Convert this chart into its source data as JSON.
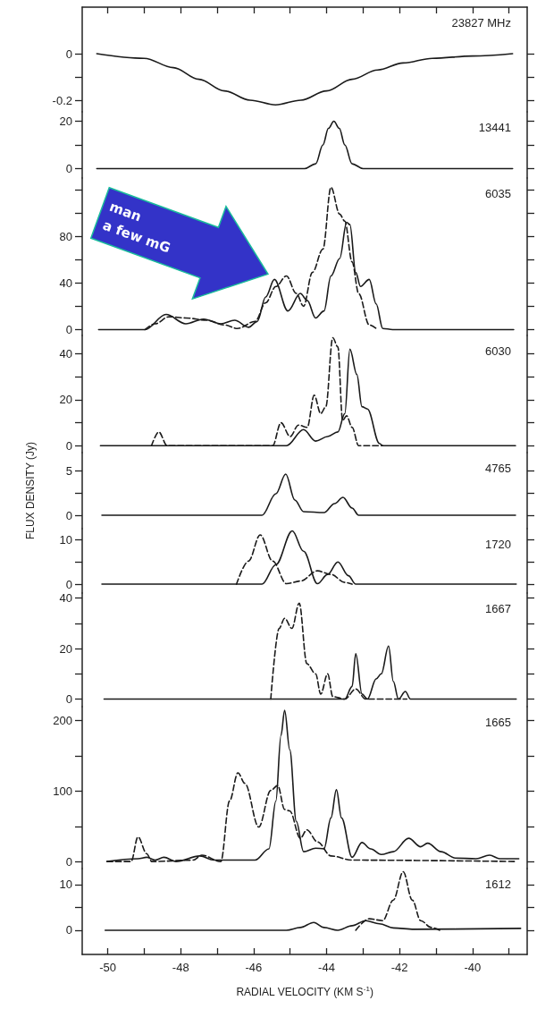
{
  "chart_data": [
    {
      "type": "line",
      "title": "23827 MHz",
      "xlim": [
        -50.7,
        -38.5
      ],
      "xticks": [
        -50,
        {
          "value": -49,
          "label": null
        },
        -48,
        {
          "value": -47,
          "label": null
        },
        -46,
        {
          "value": -45,
          "label": null
        },
        -44,
        {
          "value": -43,
          "label": null
        },
        -42,
        {
          "value": -41,
          "label": null
        },
        -40,
        {
          "value": -39,
          "label": null
        }
      ],
      "ylim": [
        -0.25,
        0.2
      ],
      "yticks": [
        0,
        {
          "value": -0.1,
          "label": null
        },
        -0.2
      ],
      "tick_labels": "y",
      "grid": false,
      "marker": "none",
      "series": [
        {
          "color": "#1a1a1a",
          "line_style": "solid",
          "x": [
            -50.3,
            -49,
            -48.2,
            -47.5,
            -46.8,
            -46.1,
            -45.4,
            -44.7,
            -44,
            -43.3,
            -42.6,
            -41.9,
            -41.1,
            -40,
            -38.9
          ],
          "values": [
            0,
            -0.02,
            -0.06,
            -0.11,
            -0.16,
            -0.2,
            -0.22,
            -0.2,
            -0.16,
            -0.11,
            -0.07,
            -0.04,
            -0.02,
            -0.01,
            0
          ]
        }
      ]
    },
    {
      "type": "line",
      "title": "13441",
      "xlim": [
        -50.7,
        -38.5
      ],
      "ylim": [
        -4,
        24
      ],
      "yticks": [
        0,
        {
          "value": 10,
          "label": null
        },
        20
      ],
      "tick_labels": "y",
      "grid": false,
      "marker": "none",
      "series": [
        {
          "color": "#1a1a1a",
          "line_style": "solid",
          "x": [
            -50.3,
            -44.6,
            -44.3,
            -44.1,
            -43.95,
            -43.8,
            -43.65,
            -43.5,
            -43.3,
            -43,
            -38.9
          ],
          "values": [
            0,
            0,
            2,
            10,
            17,
            20,
            17,
            10,
            2,
            0,
            0
          ]
        }
      ]
    },
    {
      "type": "line",
      "title": "6035",
      "xlim": [
        -50.7,
        -38.5
      ],
      "ylim": [
        -5,
        130
      ],
      "yticks": [
        0,
        {
          "value": 20,
          "label": null
        },
        40,
        {
          "value": 60,
          "label": null
        },
        80,
        {
          "value": 100,
          "label": null
        },
        {
          "value": 120,
          "label": null
        }
      ],
      "tick_labels": "y",
      "grid": false,
      "marker": "none",
      "annotations": [
        "man",
        "a few mG"
      ],
      "series": [
        {
          "color": "#1a1a1a",
          "line_style": "solid",
          "x": [
            -50.25,
            -48.98,
            -48.4,
            -47.86,
            -47.37,
            -46.9,
            -46.52,
            -46.14,
            -45.9,
            -45.67,
            -45.43,
            -45.06,
            -44.72,
            -44.53,
            -44.3,
            -44.07,
            -43.88,
            -43.64,
            -43.45,
            -43.36,
            -43.2,
            -43.07,
            -42.83,
            -42.64,
            -42.46,
            -42.19,
            -38.87
          ],
          "values": [
            0,
            0,
            13,
            5,
            9,
            5,
            8,
            2,
            7,
            28,
            43,
            16,
            31,
            25,
            10,
            16,
            46,
            61,
            92,
            90,
            49,
            37,
            43,
            22,
            1,
            0,
            0
          ]
        },
        {
          "color": "#1a1a1a",
          "line_style": "dashed",
          "x": [
            -48.98,
            -48.7,
            -48.32,
            -47.86,
            -47.28,
            -46.81,
            -46.44,
            -45.96,
            -45.67,
            -45.39,
            -45.1,
            -44.83,
            -44.63,
            -44.39,
            -44.1,
            -43.88,
            -43.64,
            -43.5,
            -43.3,
            -43.12,
            -42.83,
            -42.6
          ],
          "values": [
            0,
            5,
            11,
            10,
            8,
            4,
            1,
            7,
            23,
            37,
            46,
            31,
            20,
            49,
            69,
            122,
            99,
            93,
            58,
            31,
            4,
            0
          ]
        }
      ]
    },
    {
      "type": "line",
      "title": "6030",
      "xlim": [
        -50.7,
        -38.5
      ],
      "ylim": [
        -3,
        48
      ],
      "yticks": [
        0,
        {
          "value": 10,
          "label": null
        },
        20,
        {
          "value": 30,
          "label": null
        },
        40
      ],
      "tick_labels": "y",
      "grid": false,
      "marker": "none",
      "series": [
        {
          "color": "#1a1a1a",
          "line_style": "solid",
          "x": [
            -50.2,
            -45.1,
            -44.63,
            -44.3,
            -43.97,
            -43.69,
            -43.5,
            -43.36,
            -43.17,
            -43.03,
            -42.88,
            -42.55,
            -42.46,
            -38.82
          ],
          "values": [
            0,
            0,
            7,
            2,
            4,
            6,
            14,
            42,
            31,
            17,
            16,
            1,
            0,
            0
          ]
        },
        {
          "color": "#1a1a1a",
          "line_style": "dashed",
          "x": [
            -48.8,
            -48.6,
            -48.37,
            -45.48,
            -45.25,
            -45,
            -44.77,
            -44.53,
            -44.34,
            -44.16,
            -44.02,
            -43.83,
            -43.69,
            -43.56,
            -43.45,
            -43.3,
            -43.12,
            -42.46
          ],
          "values": [
            0,
            6,
            0,
            0,
            10,
            4,
            9,
            8,
            22,
            14,
            17,
            47,
            43,
            11,
            13,
            8,
            0,
            0
          ]
        }
      ]
    },
    {
      "type": "line",
      "title": "4765",
      "xlim": [
        -50.7,
        -38.5
      ],
      "ylim": [
        -1.5,
        7
      ],
      "yticks": [
        0,
        {
          "value": 2.5,
          "label": null
        },
        5
      ],
      "tick_labels": "y",
      "grid": false,
      "marker": "none",
      "ylabel": "FLUX DENSITY (Jy)",
      "series": [
        {
          "color": "#1a1a1a",
          "line_style": "solid",
          "x": [
            -50.16,
            -45.77,
            -45.39,
            -45.12,
            -44.87,
            -44.63,
            -44.07,
            -43.78,
            -43.55,
            -43.3,
            -43.12,
            -38.82
          ],
          "values": [
            0,
            0,
            2.4,
            4.6,
            1.7,
            0.4,
            0.3,
            1.3,
            2,
            0.8,
            0,
            0
          ]
        }
      ]
    },
    {
      "type": "line",
      "title": "1720",
      "xlim": [
        -50.7,
        -38.5
      ],
      "ylim": [
        -2,
        12.5
      ],
      "yticks": [
        0,
        {
          "value": 5,
          "label": null
        },
        10
      ],
      "tick_labels": "y",
      "grid": false,
      "marker": "none",
      "series": [
        {
          "color": "#1a1a1a",
          "line_style": "solid",
          "x": [
            -50.16,
            -45.77,
            -45.39,
            -44.94,
            -44.63,
            -44.25,
            -43.97,
            -43.69,
            -43.4,
            -43.2,
            -38.8
          ],
          "values": [
            0,
            0,
            4.4,
            12,
            7.4,
            0.1,
            2.2,
            5,
            1.9,
            0,
            0
          ]
        },
        {
          "color": "#1a1a1a",
          "line_style": "dashed",
          "x": [
            -46.47,
            -46.14,
            -45.82,
            -45.48,
            -45.1,
            -44.72,
            -44.25,
            -43.88,
            -43.5,
            -43.3
          ],
          "values": [
            0,
            5.2,
            11.1,
            5.2,
            0.1,
            0.7,
            3,
            2.2,
            0.4,
            0
          ]
        }
      ]
    },
    {
      "type": "line",
      "title": "1667",
      "xlim": [
        -50.7,
        -38.5
      ],
      "ylim": [
        -3,
        42
      ],
      "yticks": [
        0,
        {
          "value": 10,
          "label": null
        },
        20,
        {
          "value": 30,
          "label": null
        },
        40
      ],
      "tick_labels": "y",
      "grid": false,
      "marker": "none",
      "series": [
        {
          "color": "#1a1a1a",
          "line_style": "solid",
          "x": [
            -50.1,
            -43.5,
            -43.3,
            -43.2,
            -43.03,
            -42.88,
            -42.64,
            -42.5,
            -42.3,
            -42.17,
            -42.03,
            -41.84,
            -41.7,
            -38.8
          ],
          "values": [
            0,
            0,
            5,
            18,
            2,
            0,
            8,
            10,
            21,
            7,
            0,
            3,
            0,
            0
          ]
        },
        {
          "color": "#1a1a1a",
          "line_style": "dashed",
          "x": [
            -45.53,
            -45.3,
            -45.15,
            -44.95,
            -44.75,
            -44.54,
            -44.3,
            -44.16,
            -43.97,
            -43.83,
            -43.5,
            -43.2,
            -42.93,
            -41.8
          ],
          "values": [
            0,
            28,
            32,
            28,
            38,
            14,
            10,
            2,
            10,
            1,
            0,
            4,
            0,
            0
          ]
        }
      ]
    },
    {
      "type": "line",
      "title": "1665",
      "xlim": [
        -50.7,
        -38.5
      ],
      "ylim": [
        -10,
        220
      ],
      "yticks": [
        0,
        {
          "value": 50,
          "label": null
        },
        100,
        {
          "value": 150,
          "label": null
        },
        200
      ],
      "tick_labels": "y",
      "grid": false,
      "marker": "none",
      "series": [
        {
          "color": "#1a1a1a",
          "line_style": "solid",
          "x": [
            -50.02,
            -49.17,
            -48.93,
            -48.7,
            -48.46,
            -48.13,
            -47.47,
            -47.09,
            -45.96,
            -45.58,
            -45.39,
            -45.25,
            -45.15,
            -45.01,
            -44.83,
            -44.63,
            -44.3,
            -44.07,
            -43.88,
            -43.73,
            -43.59,
            -43.3,
            -43.03,
            -42.79,
            -42.5,
            -42.17,
            -41.75,
            -41.42,
            -41.23,
            -40.86,
            -40.47,
            -39.9,
            -39.53,
            -39.25,
            -38.73
          ],
          "values": [
            0,
            4,
            6,
            2,
            6,
            0,
            8,
            2,
            2,
            18,
            86,
            179,
            215,
            159,
            57,
            14,
            19,
            18,
            62,
            102,
            62,
            6,
            27,
            18,
            10,
            14,
            33,
            21,
            26,
            14,
            5,
            4,
            9,
            4,
            4
          ]
        },
        {
          "color": "#1a1a1a",
          "line_style": "dashed",
          "x": [
            -50.02,
            -49.36,
            -49.17,
            -48.93,
            -48.79,
            -47.66,
            -47.42,
            -46.9,
            -46.66,
            -46.43,
            -46.24,
            -45.86,
            -45.53,
            -45.34,
            -45.15,
            -45.01,
            -44.72,
            -44.54,
            -44.25,
            -43.88,
            -43.3,
            -38.8
          ],
          "values": [
            0,
            0,
            35,
            11,
            0,
            2,
            9,
            0,
            86,
            126,
            111,
            49,
            101,
            108,
            74,
            72,
            33,
            45,
            28,
            8,
            2,
            0
          ]
        }
      ]
    },
    {
      "type": "line",
      "title": "1612",
      "xlabel": "RADIAL VELOCITY (KM S$^{-1}$)",
      "xlim": [
        -50.7,
        -38.5
      ],
      "xticks": [
        -50,
        {
          "value": -49,
          "label": null
        },
        -48,
        {
          "value": -47,
          "label": null
        },
        -46,
        {
          "value": -45,
          "label": null
        },
        -44,
        {
          "value": -43,
          "label": null
        },
        -42,
        {
          "value": -41,
          "label": null
        },
        -40,
        {
          "value": -39,
          "label": null
        }
      ],
      "ylim": [
        -5.3,
        13.5
      ],
      "yticks": [
        0,
        {
          "value": 5,
          "label": null
        },
        10
      ],
      "grid": false,
      "marker": "none",
      "series": [
        {
          "color": "#1a1a1a",
          "line_style": "solid",
          "x": [
            -50.07,
            -45.1,
            -44.72,
            -44.35,
            -44.07,
            -43.69,
            -43.3,
            -42.93,
            -42.55,
            -42.17,
            -41.6,
            -38.68
          ],
          "values": [
            0,
            0,
            0.6,
            1.7,
            0.6,
            0,
            1,
            2.1,
            1.4,
            0.5,
            0.2,
            0.4
          ]
        },
        {
          "color": "#1a1a1a",
          "line_style": "dashed",
          "x": [
            -43.2,
            -42.83,
            -42.46,
            -42.17,
            -41.9,
            -41.65,
            -41.42,
            -41.13,
            -40.9
          ],
          "values": [
            0,
            2.5,
            2.1,
            6.6,
            12.8,
            6.6,
            2.1,
            0.6,
            0
          ]
        }
      ]
    }
  ]
}
